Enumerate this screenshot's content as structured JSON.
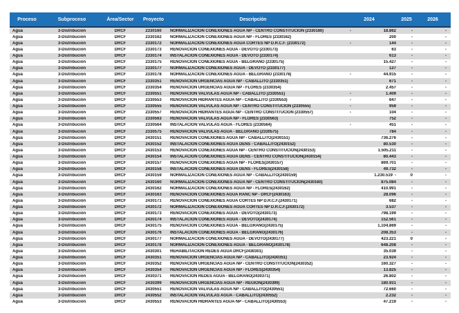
{
  "colors": {
    "header_bg": "#1f71b8",
    "header_border": "#1b3a5f",
    "stripe": "#d9d9d9",
    "text": "#161616"
  },
  "table": {
    "columns": [
      "Proceso",
      "Subproceso",
      "Área/Sector",
      "Proyecto",
      "Descripción",
      "2024",
      "2025",
      "2026"
    ],
    "rows": [
      {
        "proceso": "Agua",
        "subproceso": "3-Distribución",
        "area": "DRCF",
        "proyecto": "2330160",
        "descripcion": "NORMALIZACION CONEXIONES AGUA NP - CENTRO CONSTITUCION (2330160)",
        "pre2024": "-",
        "y2024": "18.862",
        "y2025": "-",
        "y2026": "-"
      },
      {
        "proceso": "Agua",
        "subproceso": "3-Distribución",
        "area": "DRCF",
        "proyecto": "2330162",
        "descripcion": "NORMALIZACION CONEXIONES AGUA NP - FLORES (2330162)",
        "pre2024": "",
        "y2024": "200",
        "y2025": "-",
        "y2026": "-"
      },
      {
        "proceso": "Agua",
        "subproceso": "3-Distribución",
        "area": "DRCF",
        "proyecto": "2330172",
        "descripcion": "NORMALIZACION CONEXIONES AGUA CORTES NP D.R.C.F. (2330172)",
        "pre2024": "-",
        "y2024": "144",
        "y2025": "-",
        "y2026": "-"
      },
      {
        "proceso": "Agua",
        "subproceso": "3-Distribución",
        "area": "DRCF",
        "proyecto": "2330173",
        "descripcion": "RENOVACION CONEXIONES AGUA - DEVOTO (2330173)",
        "pre2024": "",
        "y2024": "63",
        "y2025": "-",
        "y2026": "-"
      },
      {
        "proceso": "Agua",
        "subproceso": "3-Distribución",
        "area": "DRCF",
        "proyecto": "2330174",
        "descripcion": "INSTALACION CONEXIONES AGUA - DEVOTO (2330174)",
        "pre2024": "",
        "y2024": "613",
        "y2025": "-",
        "y2026": "-"
      },
      {
        "proceso": "Agua",
        "subproceso": "3-Distribución",
        "area": "DRCF",
        "proyecto": "2330175",
        "descripcion": "RENOVACION CONEXIONES AGUA - BELGRANO (2330175)",
        "pre2024": "",
        "y2024": "15.427",
        "y2025": "-",
        "y2026": "-"
      },
      {
        "proceso": "Agua",
        "subproceso": "3-Distribución",
        "area": "DRCF",
        "proyecto": "2330177",
        "descripcion": "NORMALIZACION CONEXIONES AGUA - DEVOTO (2330177)",
        "pre2024": "",
        "y2024": "127",
        "y2025": "-",
        "y2026": "-"
      },
      {
        "proceso": "Agua",
        "subproceso": "3-Distribución",
        "area": "DRCF",
        "proyecto": "2330178",
        "descripcion": "NORMALIZACION CONEXIONES AGUA - BELGRANO (2330178)",
        "pre2024": "-",
        "y2024": "44.915",
        "y2025": "-",
        "y2026": "-"
      },
      {
        "proceso": "Agua",
        "subproceso": "3-Distribución",
        "area": "DRCF",
        "proyecto": "2330351",
        "descripcion": "RENOVACION URGENCIAS AGUA NP - CABALLITO (2330351)",
        "pre2024": "",
        "y2024": "671",
        "y2025": "-",
        "y2026": "-"
      },
      {
        "proceso": "Agua",
        "subproceso": "3-Distribución",
        "area": "DRCF",
        "proyecto": "2330354",
        "descripcion": "RENOVACION URGENCIAS AGUA NP - FLORES (2330354)",
        "pre2024": "",
        "y2024": "2.457",
        "y2025": "-",
        "y2026": "-"
      },
      {
        "proceso": "Agua",
        "subproceso": "3-Distribución",
        "area": "DRCF",
        "proyecto": "2330551",
        "descripcion": "RENOVACION VALVULAS AGUA NP - CABALLITO (2330551)",
        "pre2024": "-",
        "y2024": "1.409",
        "y2025": "-",
        "y2026": "-"
      },
      {
        "proceso": "Agua",
        "subproceso": "3-Distribución",
        "area": "DRCF",
        "proyecto": "2330553",
        "descripcion": "RENOVACION HIDRANTES AGUA NP - CABALLITO (2330553)",
        "pre2024": "-",
        "y2024": "647",
        "y2025": "-",
        "y2026": "-"
      },
      {
        "proceso": "Agua",
        "subproceso": "3-Distribución",
        "area": "DRCF",
        "proyecto": "2330555",
        "descripcion": "RENOVACION VALVULAS AGUA NP - CENTRO CONSTITUCION (2330555)",
        "pre2024": "-",
        "y2024": "959",
        "y2025": "-",
        "y2026": "-"
      },
      {
        "proceso": "Agua",
        "subproceso": "3-Distribución",
        "area": "DRCF",
        "proyecto": "2330557",
        "descripcion": "RENOVACION HIDRANTES AGUA NP - CENTRO CONSTITUCION (2330557)",
        "pre2024": "-",
        "y2024": "104",
        "y2025": "-",
        "y2026": "-"
      },
      {
        "proceso": "Agua",
        "subproceso": "3-Distribución",
        "area": "DRCF",
        "proyecto": "2330563",
        "descripcion": "RENOVACION VALVULAS AGUA NP - FLORES (2330563)",
        "pre2024": "",
        "y2024": "752",
        "y2025": "-",
        "y2026": "-"
      },
      {
        "proceso": "Agua",
        "subproceso": "3-Distribución",
        "area": "DRCF",
        "proyecto": "2330564",
        "descripcion": "INSTALACION VALVULAS AGUA - FLORES (2330564)",
        "pre2024": "-",
        "y2024": "451",
        "y2025": "-",
        "y2026": "-"
      },
      {
        "proceso": "Agua",
        "subproceso": "3-Distribución",
        "area": "DRCF",
        "proyecto": "2330575",
        "descripcion": "RENOVACION VALVULAS AGUA - BELGRANO (2330575)",
        "pre2024": "",
        "y2024": "784",
        "y2025": "-",
        "y2026": "-"
      },
      {
        "proceso": "Agua",
        "subproceso": "3-Distribución",
        "area": "DRCF",
        "proyecto": "2430151",
        "descripcion": "RENOVACION CONEXIONES AGUA NP - CABALLITO(2430151)",
        "pre2024": "",
        "y2024": "736.276",
        "y2025": "-",
        "y2026": "-"
      },
      {
        "proceso": "Agua",
        "subproceso": "3-Distribución",
        "area": "DRCF",
        "proyecto": "2430152",
        "descripcion": "INSTALACION CONEXIONES AGUA DENS - CABALLITO(2430152)",
        "pre2024": "",
        "y2024": "80.530",
        "y2025": "-",
        "y2026": "-"
      },
      {
        "proceso": "Agua",
        "subproceso": "3-Distribución",
        "area": "DRCF",
        "proyecto": "2430153",
        "descripcion": "RENOVACION CONEXIONES AGUA NP - CENTRO CONSTITUCION(2430153)",
        "pre2024": "",
        "y2024": "1.505.211",
        "y2025": "-",
        "y2026": "-"
      },
      {
        "proceso": "Agua",
        "subproceso": "3-Distribución",
        "area": "DRCF",
        "proyecto": "2430154",
        "descripcion": "INSTALACION CONEXIONES AGUA DENS - CENTRO CONSTITUCION(2430154)",
        "pre2024": "",
        "y2024": "80.443",
        "y2025": "-",
        "y2026": "-"
      },
      {
        "proceso": "Agua",
        "subproceso": "3-Distribución",
        "area": "DRCF",
        "proyecto": "2430157",
        "descripcion": "RENOVACION CONEXIONES AGUA NP - FLORES(2430157)",
        "pre2024": "",
        "y2024": "869.701",
        "y2025": "-",
        "y2026": "-"
      },
      {
        "proceso": "Agua",
        "subproceso": "3-Distribución",
        "area": "DRCF",
        "proyecto": "2430158",
        "descripcion": "INSTALACION CONEXIONES AGUA DENS - FLORES(2430158)",
        "pre2024": "",
        "y2024": "49.732",
        "y2025": "-",
        "y2026": "-"
      },
      {
        "proceso": "Agua",
        "subproceso": "3-Distribución",
        "area": "DRCF",
        "proyecto": "2430159",
        "descripcion": "NORMALIZACION CONEXIONES AGUA NP - CABALLITO(2430159)",
        "pre2024": "",
        "y2024": "1.230.519",
        "post2024": "-",
        "y2025": "0",
        "y2026": "-"
      },
      {
        "proceso": "Agua",
        "subproceso": "3-Distribución",
        "area": "DRCF",
        "proyecto": "2430160",
        "descripcion": "NORMALIZACION CONEXIONES AGUA NP - CENTRO CONSTITUCION(2430160)",
        "pre2024": "",
        "y2024": "875.084",
        "y2025": "-",
        "y2026": "-"
      },
      {
        "proceso": "Agua",
        "subproceso": "3-Distribución",
        "area": "DRCF",
        "proyecto": "2430162",
        "descripcion": "NORMALIZACION CONEXIONES AGUA NP - FLORES(2430162)",
        "pre2024": "",
        "y2024": "410.991",
        "y2025": "-",
        "y2026": "-"
      },
      {
        "proceso": "Agua",
        "subproceso": "3-Distribución",
        "area": "DRCF",
        "proyecto": "2430163",
        "descripcion": "RENOVACION CONEXIONES AGUA RANC NP - DRCF(2430163)",
        "pre2024": "",
        "y2024": "28.096",
        "y2025": "-",
        "y2026": "-"
      },
      {
        "proceso": "Agua",
        "subproceso": "3-Distribución",
        "area": "DRCF",
        "proyecto": "2430171",
        "descripcion": "RENOVACION CONEXIONES AGUA CORTES NP D.R.C.F.(2430171)",
        "pre2024": "",
        "y2024": "682",
        "y2025": "-",
        "y2026": "-"
      },
      {
        "proceso": "Agua",
        "subproceso": "3-Distribución",
        "area": "DRCF",
        "proyecto": "2430172",
        "descripcion": "NORMALIZACION CONEXIONES AGUA CORTES NP D.R.C.F.(2430172)",
        "pre2024": "",
        "y2024": "3.537",
        "y2025": "-",
        "y2026": "-"
      },
      {
        "proceso": "Agua",
        "subproceso": "3-Distribución",
        "area": "DRCF",
        "proyecto": "2430173",
        "descripcion": "RENOVACION CONEXIONES AGUA - DEVOTO(2430173)",
        "pre2024": "",
        "y2024": "798.199",
        "y2025": "-",
        "y2026": "-"
      },
      {
        "proceso": "Agua",
        "subproceso": "3-Distribución",
        "area": "DRCF",
        "proyecto": "2430174",
        "descripcion": "INSTALACION CONEXIONES AGUA - DEVOTO(2430174)",
        "pre2024": "",
        "y2024": "152.561",
        "y2025": "-",
        "y2026": "-"
      },
      {
        "proceso": "Agua",
        "subproceso": "3-Distribución",
        "area": "DRCF",
        "proyecto": "2430175",
        "descripcion": "RENOVACION CONEXIONES AGUA - BELGRANO(2430175)",
        "pre2024": "",
        "y2024": "1.104.869",
        "y2025": "-",
        "y2026": "-"
      },
      {
        "proceso": "Agua",
        "subproceso": "3-Distribución",
        "area": "DRCF",
        "proyecto": "2430176",
        "descripcion": "INSTALACION CONEXIONES AGUA - BELGRANO(2430176)",
        "pre2024": "",
        "y2024": "208.353",
        "y2025": "-",
        "y2026": "-"
      },
      {
        "proceso": "Agua",
        "subproceso": "3-Distribución",
        "area": "DRCF",
        "proyecto": "2430177",
        "descripcion": "NORMALIZACION CONEXIONES AGUA - DEVOTO(2430177)",
        "pre2024": "",
        "y2024": "423.221",
        "y2025": "0",
        "y2026": "-"
      },
      {
        "proceso": "Agua",
        "subproceso": "3-Distribución",
        "area": "DRCF",
        "proyecto": "2430178",
        "descripcion": "NORMALIZACION CONEXIONES AGUA - BELGRANO(2430178)",
        "pre2024": "",
        "y2024": "648.208",
        "y2025": "-",
        "y2026": "-"
      },
      {
        "proceso": "Agua",
        "subproceso": "3-Distribución",
        "area": "DRCF",
        "proyecto": "2430301",
        "descripcion": "REHABILITACION REDES AGUA DRCF(2430301)",
        "pre2024": "",
        "y2024": "35.039",
        "y2025": "-",
        "y2026": "-"
      },
      {
        "proceso": "Agua",
        "subproceso": "3-Distribución",
        "area": "DRCF",
        "proyecto": "2430351",
        "descripcion": "RENOVACION URGENCIAS AGUA NP - CABALLITO(2430351)",
        "pre2024": "",
        "y2024": "23.924",
        "y2025": "-",
        "y2026": "-"
      },
      {
        "proceso": "Agua",
        "subproceso": "3-Distribución",
        "area": "DRCF",
        "proyecto": "2430352",
        "descripcion": "RENOVACION URGENCIAS AGUA NP - CENTRO CONSTITUCION(2430352)",
        "pre2024": "",
        "y2024": "160.327",
        "y2025": "-",
        "y2026": "-"
      },
      {
        "proceso": "Agua",
        "subproceso": "3-Distribución",
        "area": "DRCF",
        "proyecto": "2430354",
        "descripcion": "RENOVACION URGENCIAS AGUA NP - FLORES(2430354)",
        "pre2024": "",
        "y2024": "13.825",
        "y2025": "-",
        "y2026": "-"
      },
      {
        "proceso": "Agua",
        "subproceso": "3-Distribución",
        "area": "DRCF",
        "proyecto": "2430371",
        "descripcion": "RENOVACION REDES AGUA - BELGRANO(2430371)",
        "pre2024": "",
        "y2024": "26.802",
        "y2025": "-",
        "y2026": "-"
      },
      {
        "proceso": "Agua",
        "subproceso": "3-Distribución",
        "area": "DRCF",
        "proyecto": "2430399",
        "descripcion": "RENOVACION URGENCIAS AGUA NP - REGION(2430399)",
        "pre2024": "",
        "y2024": "180.931",
        "y2025": "-",
        "y2026": "-"
      },
      {
        "proceso": "Agua",
        "subproceso": "3-Distribución",
        "area": "DRCF",
        "proyecto": "2430551",
        "descripcion": "RENOVACION VALVULAS AGUA NP - CABALLITO(2430551)",
        "pre2024": "",
        "y2024": "72.660",
        "y2025": "-",
        "y2026": "-"
      },
      {
        "proceso": "Agua",
        "subproceso": "3-Distribución",
        "area": "DRCF",
        "proyecto": "2430552",
        "descripcion": "INSTALACION VALVULAS AGUA - CABALLITO(2430552)",
        "pre2024": "",
        "y2024": "2.232",
        "y2025": "-",
        "y2026": "-"
      },
      {
        "proceso": "Agua",
        "subproceso": "3-Distribución",
        "area": "DRCF",
        "proyecto": "2430553",
        "descripcion": "RENOVACION HIDRANTES AGUA NP - CABALLITO(2430553)",
        "pre2024": "",
        "y2024": "47.219",
        "y2025": "-",
        "y2026": "-"
      }
    ]
  }
}
